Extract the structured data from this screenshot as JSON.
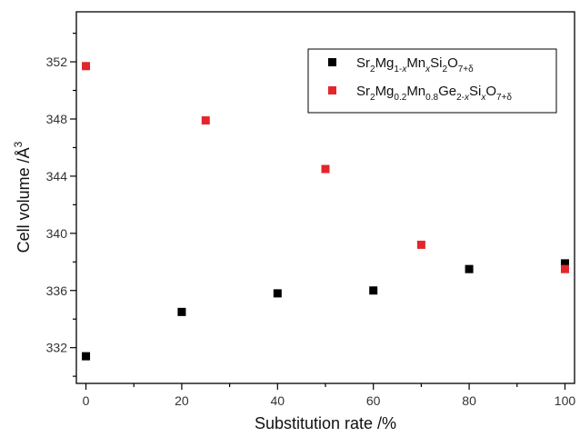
{
  "chart_data": {
    "type": "scatter",
    "xlabel": "Substitution rate /%",
    "ylabel": "Cell volume /Å",
    "ylabel_superscript": "3",
    "xlim": [
      -2,
      102
    ],
    "ylim": [
      329.5,
      355.5
    ],
    "x_ticks": [
      0,
      20,
      40,
      60,
      80,
      100
    ],
    "y_ticks": [
      332,
      336,
      340,
      344,
      348,
      352
    ],
    "x_minor_ticks": [
      10,
      30,
      50,
      70,
      90
    ],
    "y_minor_ticks": [
      330,
      334,
      338,
      342,
      346,
      350,
      354
    ],
    "grid": false,
    "legend_position": "top-right",
    "series": [
      {
        "name": "Sr2Mg1-xMnxSi2O7+δ",
        "color": "#000000",
        "marker": "square",
        "legend_parts": [
          {
            "t": "Sr",
            "s": "n"
          },
          {
            "t": "2",
            "s": "sub"
          },
          {
            "t": "Mg",
            "s": "n"
          },
          {
            "t": "1-",
            "s": "sub"
          },
          {
            "t": "x",
            "s": "subi"
          },
          {
            "t": "Mn",
            "s": "n"
          },
          {
            "t": "x",
            "s": "subi"
          },
          {
            "t": "Si",
            "s": "n"
          },
          {
            "t": "2",
            "s": "sub"
          },
          {
            "t": "O",
            "s": "n"
          },
          {
            "t": "7+δ",
            "s": "sub"
          }
        ],
        "points": [
          [
            0,
            331.4
          ],
          [
            20,
            334.5
          ],
          [
            40,
            335.8
          ],
          [
            60,
            336.0
          ],
          [
            80,
            337.5
          ],
          [
            100,
            337.9
          ]
        ]
      },
      {
        "name": "Sr2Mg0.2Mn0.8Ge2-xSixO7+δ",
        "color": "#e3262c",
        "marker": "square",
        "legend_parts": [
          {
            "t": "Sr",
            "s": "n"
          },
          {
            "t": "2",
            "s": "sub"
          },
          {
            "t": "Mg",
            "s": "n"
          },
          {
            "t": "0.2",
            "s": "sub"
          },
          {
            "t": "Mn",
            "s": "n"
          },
          {
            "t": "0.8",
            "s": "sub"
          },
          {
            "t": "Ge",
            "s": "n"
          },
          {
            "t": "2-",
            "s": "sub"
          },
          {
            "t": "x",
            "s": "subi"
          },
          {
            "t": "Si",
            "s": "n"
          },
          {
            "t": "x",
            "s": "subi"
          },
          {
            "t": "O",
            "s": "n"
          },
          {
            "t": "7+δ",
            "s": "sub"
          }
        ],
        "points": [
          [
            0,
            351.7
          ],
          [
            25,
            347.9
          ],
          [
            50,
            344.5
          ],
          [
            70,
            339.2
          ],
          [
            100,
            337.5
          ]
        ]
      }
    ]
  }
}
